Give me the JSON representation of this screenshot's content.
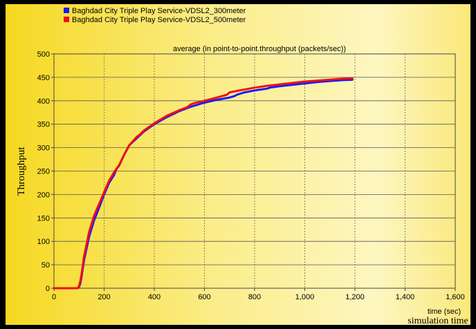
{
  "chart_data": {
    "type": "line",
    "title": "average (in point-to-point.throughput (packets/sec))",
    "ylabel": "Throughput",
    "xlabel": "time (sec)",
    "footer_label": "simulation time",
    "xlim": [
      0,
      1600
    ],
    "ylim": [
      0,
      500
    ],
    "x_ticks": [
      0,
      200,
      400,
      600,
      800,
      1000,
      1200,
      1400,
      1600
    ],
    "x_tick_labels": [
      "0",
      "200",
      "400",
      "600",
      "800",
      "1,000",
      "1,200",
      "1,400",
      "1,600"
    ],
    "y_ticks": [
      0,
      50,
      100,
      150,
      200,
      250,
      300,
      350,
      400,
      450,
      500
    ],
    "y_tick_labels": [
      "0",
      "50",
      "100",
      "150",
      "200",
      "250",
      "300",
      "350",
      "400",
      "450",
      "500"
    ],
    "grid": true,
    "legend_position": "top-left",
    "series": [
      {
        "name": "Baghdad City Triple Play Service-VDSL2_300meter",
        "color": "#1a1aff",
        "x": [
          0,
          95,
          100,
          105,
          110,
          120,
          140,
          160,
          180,
          200,
          220,
          240,
          250,
          260,
          280,
          300,
          330,
          360,
          400,
          450,
          500,
          550,
          600,
          650,
          700,
          720,
          730,
          760,
          800,
          850,
          860,
          900,
          950,
          1000,
          1050,
          1100,
          1150,
          1190
        ],
        "y": [
          0,
          0,
          3,
          10,
          25,
          60,
          110,
          145,
          172,
          200,
          225,
          242,
          255,
          262,
          285,
          305,
          320,
          335,
          350,
          365,
          378,
          388,
          396,
          402,
          407,
          410,
          413,
          418,
          422,
          426,
          428,
          431,
          434,
          437,
          440,
          442,
          444,
          445
        ]
      },
      {
        "name": "Baghdad City Triple Play Service-VDSL2_500meter",
        "color": "#ee1111",
        "x": [
          0,
          95,
          100,
          105,
          110,
          120,
          140,
          160,
          180,
          200,
          220,
          240,
          260,
          280,
          300,
          330,
          340,
          360,
          400,
          450,
          500,
          530,
          545,
          560,
          600,
          650,
          690,
          700,
          750,
          800,
          850,
          900,
          950,
          1000,
          1050,
          1100,
          1150,
          1190
        ],
        "y": [
          0,
          0,
          5,
          15,
          30,
          68,
          120,
          155,
          180,
          205,
          230,
          248,
          263,
          285,
          305,
          323,
          327,
          337,
          352,
          368,
          380,
          386,
          392,
          395,
          400,
          407,
          413,
          418,
          423,
          428,
          432,
          435,
          438,
          441,
          443,
          445,
          447,
          448
        ]
      }
    ]
  }
}
